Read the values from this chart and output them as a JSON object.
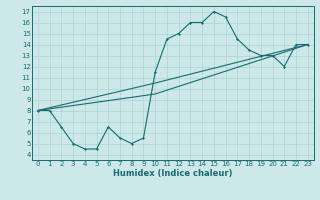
{
  "xlabel": "Humidex (Indice chaleur)",
  "xlim": [
    -0.5,
    23.5
  ],
  "ylim": [
    3.5,
    17.5
  ],
  "xticks": [
    0,
    1,
    2,
    3,
    4,
    5,
    6,
    7,
    8,
    9,
    10,
    11,
    12,
    13,
    14,
    15,
    16,
    17,
    18,
    19,
    20,
    21,
    22,
    23
  ],
  "yticks": [
    4,
    5,
    6,
    7,
    8,
    9,
    10,
    11,
    12,
    13,
    14,
    15,
    16,
    17
  ],
  "bg_color": "#cce8e8",
  "grid_color": "#aad4d4",
  "line_color": "#1a6b6b",
  "lines": [
    {
      "x": [
        0,
        1,
        2,
        3,
        4,
        5,
        6,
        7,
        8,
        9,
        10,
        11,
        12,
        13,
        14,
        15,
        16,
        17,
        18,
        19,
        20,
        21,
        22,
        23
      ],
      "y": [
        8,
        8,
        6.5,
        5,
        4.5,
        4.5,
        6.5,
        5.5,
        5,
        5.5,
        11.5,
        14.5,
        15,
        16,
        16,
        17,
        16.5,
        14.5,
        13.5,
        13,
        13,
        12,
        14,
        14
      ]
    },
    {
      "x": [
        0,
        10,
        23
      ],
      "y": [
        8,
        10.5,
        14
      ]
    },
    {
      "x": [
        0,
        10,
        23
      ],
      "y": [
        8,
        9.5,
        14
      ]
    }
  ]
}
